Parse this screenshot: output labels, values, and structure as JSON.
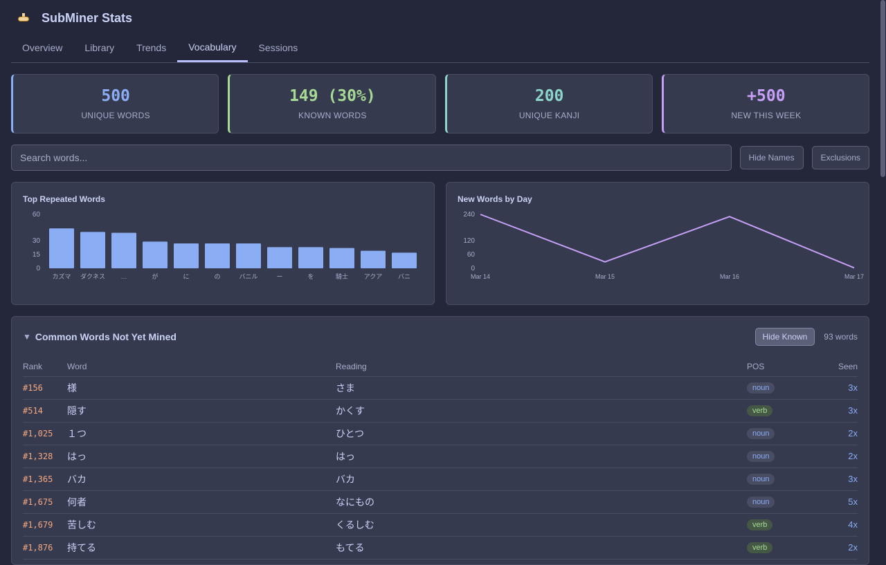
{
  "app": {
    "title": "SubMiner Stats",
    "logo_icon": "submarine-icon"
  },
  "tabs": [
    {
      "label": "Overview"
    },
    {
      "label": "Library"
    },
    {
      "label": "Trends"
    },
    {
      "label": "Vocabulary",
      "active": true
    },
    {
      "label": "Sessions"
    }
  ],
  "stats": [
    {
      "value": "500",
      "label": "UNIQUE WORDS",
      "color": "#8aadf4"
    },
    {
      "value": "149 (30%)",
      "label": "KNOWN WORDS",
      "color": "#a6da95"
    },
    {
      "value": "200",
      "label": "UNIQUE KANJI",
      "color": "#8bd5ca"
    },
    {
      "value": "+500",
      "label": "NEW THIS WEEK",
      "color": "#c6a0f6"
    }
  ],
  "search": {
    "placeholder": "Search words...",
    "value": ""
  },
  "buttons": {
    "hide_names": "Hide Names",
    "exclusions": "Exclusions"
  },
  "chart_data": [
    {
      "type": "bar",
      "title": "Top Repeated Words",
      "categories": [
        "カズマ",
        "ダクネス",
        "…",
        "が",
        "に",
        "の",
        "バニル",
        "ー",
        "を",
        "騎士",
        "アクア",
        "バニ"
      ],
      "values": [
        44,
        40,
        39,
        29,
        27,
        27,
        27,
        23,
        23,
        22,
        19,
        17
      ],
      "yticks": [
        0,
        15,
        30,
        60
      ],
      "ylim": [
        0,
        60
      ],
      "color": "#8aadf4",
      "grid": false
    },
    {
      "type": "line",
      "title": "New Words by Day",
      "categories": [
        "Mar 14",
        "Mar 15",
        "Mar 16",
        "Mar 17"
      ],
      "values": [
        240,
        28,
        230,
        2
      ],
      "yticks": [
        0,
        60,
        120,
        240
      ],
      "ylim": [
        0,
        240
      ],
      "color": "#c6a0f6",
      "grid": false
    }
  ],
  "table": {
    "title": "Common Words Not Yet Mined",
    "hide_known": "Hide Known",
    "count": "93 words",
    "columns": [
      "Rank",
      "Word",
      "Reading",
      "POS",
      "Seen"
    ],
    "rows": [
      [
        "#156",
        "様",
        "さま",
        "noun",
        "3x"
      ],
      [
        "#514",
        "隠す",
        "かくす",
        "verb",
        "3x"
      ],
      [
        "#1,025",
        "１つ",
        "ひとつ",
        "noun",
        "2x"
      ],
      [
        "#1,328",
        "はっ",
        "はっ",
        "noun",
        "2x"
      ],
      [
        "#1,365",
        "バカ",
        "バカ",
        "noun",
        "3x"
      ],
      [
        "#1,675",
        "何者",
        "なにもの",
        "noun",
        "5x"
      ],
      [
        "#1,679",
        "苦しむ",
        "くるしむ",
        "verb",
        "4x"
      ],
      [
        "#1,876",
        "持てる",
        "もてる",
        "verb",
        "2x"
      ]
    ]
  }
}
